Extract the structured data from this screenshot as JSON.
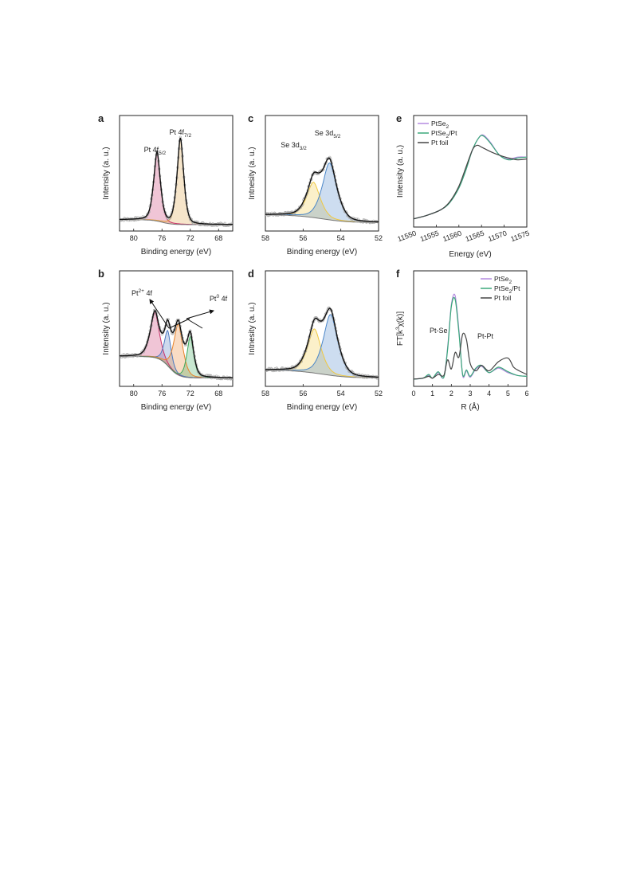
{
  "chart_data": [
    {
      "panel": "a",
      "type": "line",
      "xlabel": "Binding energy (eV)",
      "ylabel": "Intensity (a. u.)",
      "xlim": [
        82,
        66
      ],
      "xticks": [
        80,
        76,
        72,
        68
      ],
      "annotations": [
        {
          "label": "Pt 4f5/2",
          "base": "Pt 4f",
          "sub": "5/2",
          "x": 77.0
        },
        {
          "label": "Pt 4f7/2",
          "base": "Pt 4f",
          "sub": "7/2",
          "x": 73.4
        }
      ],
      "peaks": [
        {
          "center": 76.7,
          "width": 0.55,
          "height": 0.7,
          "color": "#c8306a"
        },
        {
          "center": 73.4,
          "width": 0.55,
          "height": 0.88,
          "color": "#e0a040"
        }
      ],
      "background": {
        "left": 0.05,
        "right": 0.0,
        "step_at": 76
      }
    },
    {
      "panel": "b",
      "type": "line",
      "xlabel": "Binding energy (eV)",
      "ylabel": "Intensity (a. u.)",
      "xlim": [
        82,
        66
      ],
      "xticks": [
        80,
        76,
        72,
        68
      ],
      "annotations": [
        {
          "label": "Pt2+ 4f",
          "base": "Pt",
          "sup": "2+",
          "tail": " 4f",
          "x": 78.0
        },
        {
          "label": "Pt0 4f",
          "base": "Pt",
          "sup": "0",
          "tail": " 4f",
          "x": 70.0
        }
      ],
      "peaks": [
        {
          "center": 77.0,
          "width": 0.75,
          "height": 0.46,
          "color": "#c8306a"
        },
        {
          "center": 75.2,
          "width": 0.55,
          "height": 0.36,
          "color": "#4a78c0"
        },
        {
          "center": 73.7,
          "width": 0.75,
          "height": 0.52,
          "color": "#e8832a"
        },
        {
          "center": 72.0,
          "width": 0.55,
          "height": 0.42,
          "color": "#3aa85a"
        }
      ],
      "background": {
        "left": 0.24,
        "right": 0.02,
        "step_at": 75
      }
    },
    {
      "panel": "c",
      "type": "line",
      "xlabel": "Binding energy (eV)",
      "ylabel": "Intnesity (a. u.)",
      "xlim": [
        58,
        52
      ],
      "xticks": [
        58,
        56,
        54,
        52
      ],
      "annotations": [
        {
          "label": "Se 3d3/2",
          "base": "Se 3d",
          "sub": "3/2",
          "x": 56.5
        },
        {
          "label": "Se 3d5/2",
          "base": "Se 3d",
          "sub": "5/2",
          "x": 54.7
        }
      ],
      "peaks": [
        {
          "center": 55.45,
          "width": 0.42,
          "height": 0.36,
          "color": "#f0c840"
        },
        {
          "center": 54.6,
          "width": 0.45,
          "height": 0.58,
          "color": "#4a86c8"
        }
      ],
      "background": {
        "left": 0.1,
        "right": 0.02,
        "step_at": 55
      }
    },
    {
      "panel": "d",
      "type": "line",
      "xlabel": "Binding energy (eV)",
      "ylabel": "Intnesity (a. u.)",
      "xlim": [
        58,
        52
      ],
      "xticks": [
        58,
        56,
        54,
        52
      ],
      "annotations": [],
      "peaks": [
        {
          "center": 55.4,
          "width": 0.42,
          "height": 0.45,
          "color": "#f0c840"
        },
        {
          "center": 54.55,
          "width": 0.45,
          "height": 0.62,
          "color": "#4a86c8"
        }
      ],
      "background": {
        "left": 0.1,
        "right": 0.02,
        "step_at": 55
      }
    },
    {
      "panel": "e",
      "type": "line",
      "xlabel": "Energy (eV)",
      "ylabel": "Intensity (a. u.)",
      "xlim": [
        11550,
        11575
      ],
      "xticks": [
        11550,
        11555,
        11560,
        11565,
        11570,
        11575
      ],
      "legend_loc": "top-left",
      "series": [
        {
          "name": "PtSe2",
          "base": "PtSe",
          "sub": "2",
          "color": "#b48ae0",
          "x": [
            11550,
            11553,
            11556,
            11558,
            11560,
            11561.5,
            11563,
            11564.5,
            11565.5,
            11567,
            11569,
            11571,
            11573,
            11575
          ],
          "y": [
            0.02,
            0.06,
            0.12,
            0.2,
            0.36,
            0.55,
            0.78,
            0.92,
            0.94,
            0.86,
            0.72,
            0.68,
            0.7,
            0.7
          ]
        },
        {
          "name": "PtSe2/Pt",
          "base": "PtSe",
          "sub": "2",
          "tail": "/Pt",
          "color": "#3aa87a",
          "x": [
            11550,
            11553,
            11556,
            11558,
            11560,
            11561.5,
            11563,
            11564.5,
            11565.5,
            11567,
            11569,
            11571,
            11573,
            11575
          ],
          "y": [
            0.02,
            0.06,
            0.12,
            0.2,
            0.36,
            0.55,
            0.78,
            0.92,
            0.93,
            0.85,
            0.72,
            0.67,
            0.69,
            0.7
          ]
        },
        {
          "name": "Pt foil",
          "color": "#444444",
          "x": [
            11550,
            11553,
            11556,
            11558,
            11560,
            11561.5,
            11563,
            11564,
            11565,
            11567,
            11569,
            11571,
            11573,
            11575
          ],
          "y": [
            0.02,
            0.06,
            0.12,
            0.21,
            0.38,
            0.58,
            0.78,
            0.83,
            0.81,
            0.76,
            0.72,
            0.69,
            0.67,
            0.68
          ]
        }
      ]
    },
    {
      "panel": "f",
      "type": "line",
      "xlabel": "R (Å)",
      "ylabel": "FT[k3χ(k)]",
      "ylabel_parts": {
        "base": "FT[k",
        "sup": "3",
        "tail": "χ(k)]"
      },
      "xlim": [
        0,
        6
      ],
      "xticks": [
        0,
        1,
        2,
        3,
        4,
        5,
        6
      ],
      "legend_loc": "top-right",
      "annotations": [
        {
          "label": "Pt-Se",
          "x": 1.0
        },
        {
          "label": "Pt-Pt",
          "x": 3.0
        }
      ],
      "series": [
        {
          "name": "PtSe2",
          "base": "PtSe",
          "sub": "2",
          "color": "#b48ae0",
          "x": [
            0,
            0.5,
            0.8,
            1.0,
            1.3,
            1.6,
            1.8,
            2.0,
            2.2,
            2.4,
            2.6,
            2.8,
            3.0,
            3.3,
            3.6,
            4.0,
            4.5,
            5.0,
            5.5,
            6.0
          ],
          "y": [
            0.01,
            0.02,
            0.05,
            0.02,
            0.08,
            0.03,
            0.35,
            0.82,
            0.92,
            0.55,
            0.05,
            0.1,
            0.03,
            0.12,
            0.15,
            0.08,
            0.13,
            0.08,
            0.05,
            0.04
          ]
        },
        {
          "name": "PtSe2/Pt",
          "base": "PtSe",
          "sub": "2",
          "tail": "/Pt",
          "color": "#3aa87a",
          "x": [
            0,
            0.5,
            0.8,
            1.0,
            1.3,
            1.6,
            1.8,
            2.0,
            2.2,
            2.4,
            2.6,
            2.8,
            3.0,
            3.3,
            3.6,
            4.0,
            4.5,
            5.0,
            5.5,
            6.0
          ],
          "y": [
            0.01,
            0.02,
            0.06,
            0.02,
            0.09,
            0.03,
            0.33,
            0.8,
            0.88,
            0.52,
            0.06,
            0.11,
            0.04,
            0.13,
            0.16,
            0.08,
            0.14,
            0.09,
            0.05,
            0.04
          ]
        },
        {
          "name": "Pt foil",
          "color": "#444444",
          "x": [
            0,
            0.5,
            0.8,
            1.0,
            1.3,
            1.6,
            1.8,
            2.0,
            2.2,
            2.4,
            2.6,
            2.8,
            3.0,
            3.3,
            3.6,
            4.0,
            4.5,
            5.0,
            5.3,
            5.6,
            6.0
          ],
          "y": [
            0.01,
            0.02,
            0.04,
            0.02,
            0.06,
            0.05,
            0.22,
            0.12,
            0.3,
            0.25,
            0.5,
            0.44,
            0.18,
            0.1,
            0.16,
            0.1,
            0.2,
            0.24,
            0.14,
            0.1,
            0.06
          ]
        }
      ]
    }
  ]
}
